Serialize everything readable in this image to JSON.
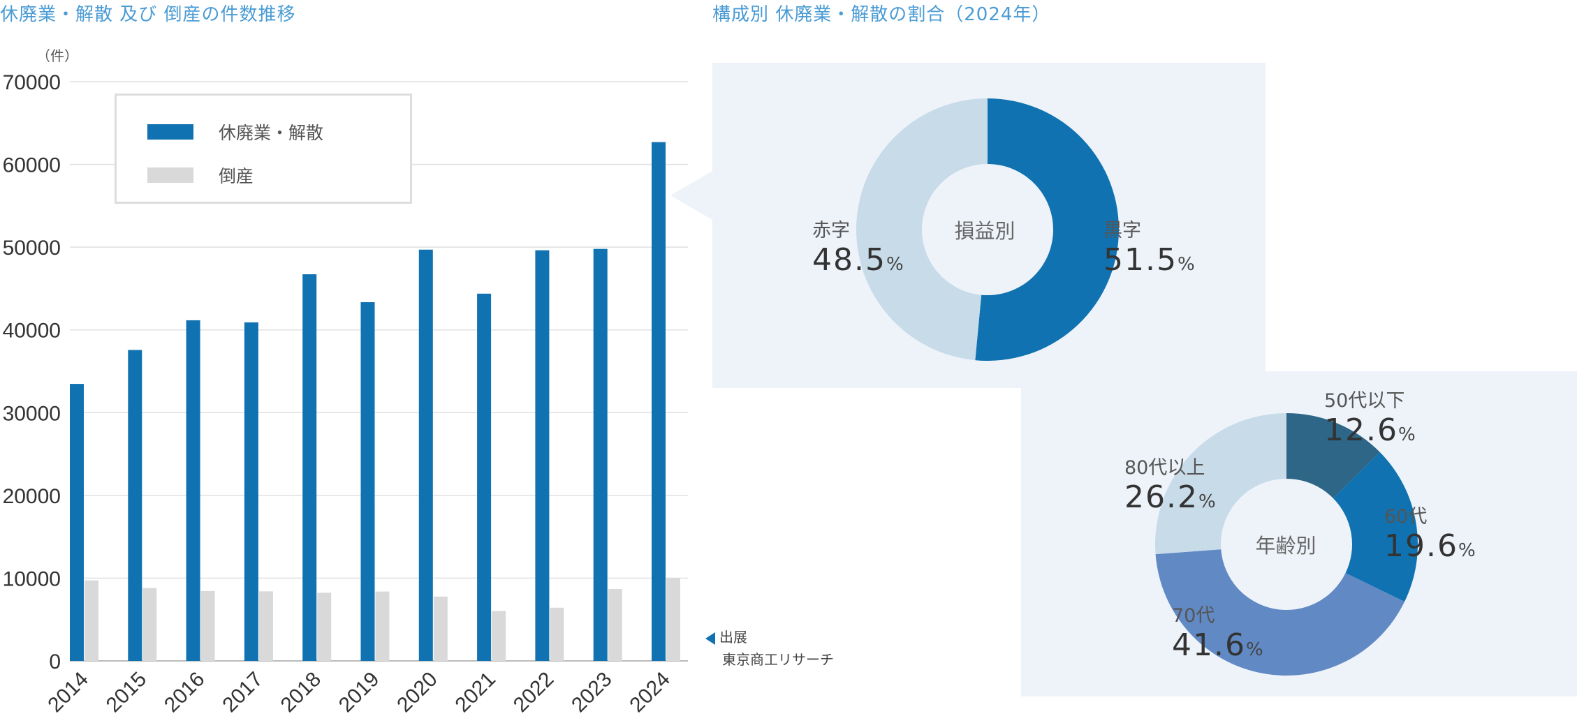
{
  "left_title": "休廃業・解散 及び 倒産の件数推移",
  "right_title": "構成別 休廃業・解散の割合（2024年）",
  "source": {
    "label": "出展",
    "name": "東京商工リサーチ"
  },
  "colors": {
    "primary": "#1072b0",
    "gray_bar": "#d9d9d9",
    "light_blue": "#c8dbe9",
    "dark_blue": "#2d6687",
    "mid_blue": "#6189c4",
    "panel_bg": "#eef3fa",
    "title": "#4a9bd4"
  },
  "chart_data": [
    {
      "type": "bar",
      "title": "休廃業・解散 及び 倒産の件数推移",
      "ylabel": "（件）",
      "ylim": [
        0,
        70000
      ],
      "yticks": [
        "0",
        "10000",
        "20000",
        "30000",
        "40000",
        "50000",
        "60000",
        "70000"
      ],
      "categories": [
        "2014",
        "2015",
        "2016",
        "2017",
        "2018",
        "2019",
        "2020",
        "2021",
        "2022",
        "2023",
        "2024"
      ],
      "legend_position": "top-left",
      "series": [
        {
          "name": "休廃業・解散",
          "values": [
            33475,
            37575,
            41162,
            40909,
            46724,
            43348,
            49698,
            44377,
            49625,
            49788,
            62695
          ]
        },
        {
          "name": "倒産",
          "values": [
            9731,
            8812,
            8446,
            8405,
            8235,
            8383,
            7773,
            6030,
            6428,
            8690,
            10006
          ]
        }
      ]
    },
    {
      "type": "pie",
      "center_label": "損益別",
      "slices": [
        {
          "name": "黒字",
          "value": 51.5,
          "display": "51.5",
          "unit": "%"
        },
        {
          "name": "赤字",
          "value": 48.5,
          "display": "48.5",
          "unit": "%"
        }
      ]
    },
    {
      "type": "pie",
      "center_label": "年齢別",
      "slices": [
        {
          "name": "50代以下",
          "value": 12.6,
          "display": "12.6",
          "unit": "%"
        },
        {
          "name": "60代",
          "value": 19.6,
          "display": "19.6",
          "unit": "%"
        },
        {
          "name": "70代",
          "value": 41.6,
          "display": "41.6",
          "unit": "%"
        },
        {
          "name": "80代以上",
          "value": 26.2,
          "display": "26.2",
          "unit": "%"
        }
      ]
    }
  ]
}
